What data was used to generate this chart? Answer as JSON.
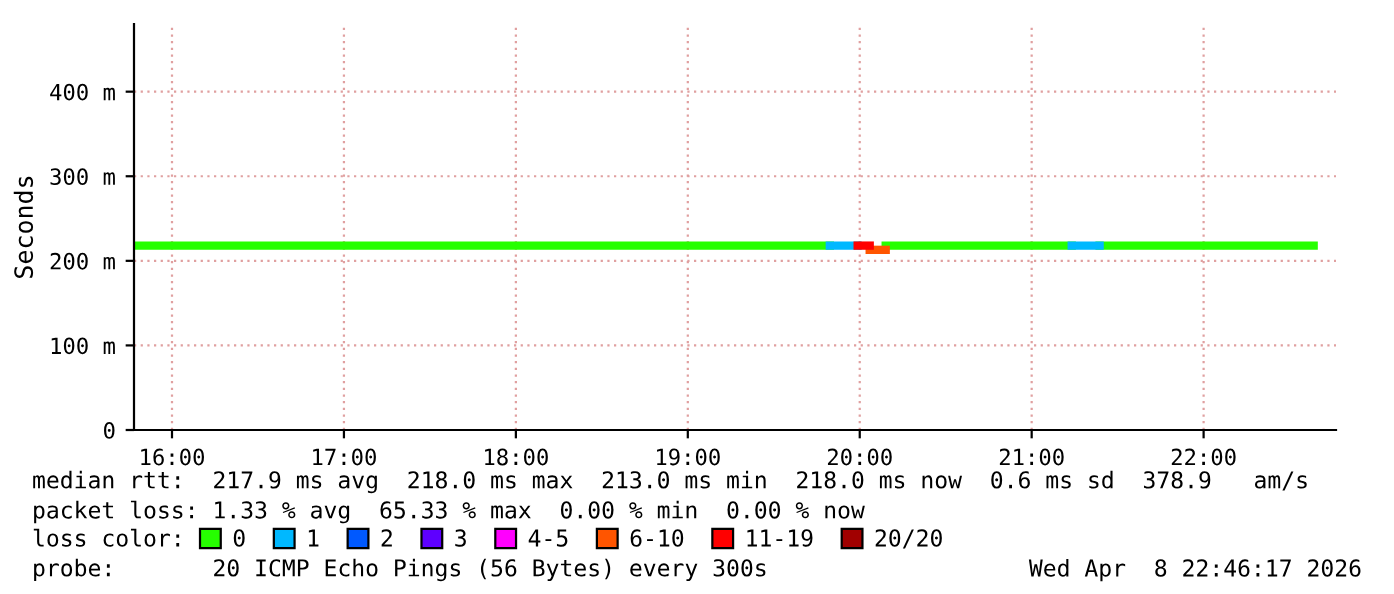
{
  "chart_data": {
    "type": "line",
    "ylabel": "Seconds",
    "legend_title": "loss color:",
    "legend": "bottom",
    "grid": true,
    "xlim": [
      15.779,
      22.77
    ],
    "xticks": [
      {
        "value": 16,
        "label": "16:00"
      },
      {
        "value": 17,
        "label": "17:00"
      },
      {
        "value": 18,
        "label": "18:00"
      },
      {
        "value": 19,
        "label": "19:00"
      },
      {
        "value": 20,
        "label": "20:00"
      },
      {
        "value": 21,
        "label": "21:00"
      },
      {
        "value": 22,
        "label": "22:00"
      }
    ],
    "ylim": [
      0,
      480
    ],
    "yticks": [
      0,
      {
        "value": 100,
        "label": "100 m"
      },
      {
        "value": 200,
        "label": "200 m"
      },
      {
        "value": 300,
        "label": "300 m"
      },
      {
        "value": 400,
        "label": "400 m"
      }
    ],
    "series": [
      {
        "name": "0",
        "color": "#26ff00",
        "x": [
          15.779,
          19.826,
          20.0,
          20.151,
          21.233,
          21.3,
          21.395,
          22.64
        ],
        "values": [
          218,
          218,
          null,
          218,
          218,
          null,
          218,
          218
        ]
      },
      {
        "name": "1",
        "color": "#00b8ff",
        "x": [
          19.826,
          19.988,
          20.6,
          21.233,
          21.395
        ],
        "values": [
          218,
          218,
          null,
          218,
          218
        ]
      },
      {
        "name": "2",
        "color": "#0059ff"
      },
      {
        "name": "3",
        "color": "#5e00ff"
      },
      {
        "name": "4-5",
        "color": "#ff00fe"
      },
      {
        "name": "6-10",
        "color": "#ff5500",
        "x": [
          20.058,
          20.151
        ],
        "values": [
          213,
          213
        ]
      },
      {
        "name": "11-19",
        "color": "#ff0000",
        "x": [
          19.988,
          20.058
        ],
        "values": [
          218,
          218
        ]
      },
      {
        "name": "20/20",
        "color": "#a10000"
      }
    ],
    "annotations": [
      "median rtt:  217.9 ms avg  218.0 ms max  213.0 ms min  218.0 ms now  0.6 ms sd  378.9   am/s",
      "packet loss: 1.33 % avg  65.33 % max  0.00 % min  0.00 % now",
      "probe:       20 ICMP Echo Pings (56 Bytes) every 300s",
      "Wed Apr  8 22:46:17 2026"
    ]
  }
}
